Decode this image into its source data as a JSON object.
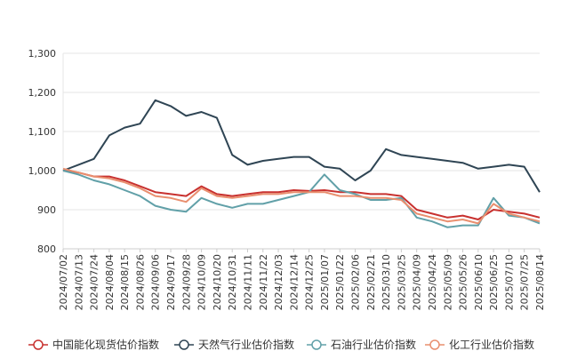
{
  "chart_data": {
    "type": "line",
    "title": "",
    "xlabel": "",
    "ylabel": "",
    "ylim": [
      800,
      1300
    ],
    "yticks": [
      "800",
      "900",
      "1,000",
      "1,100",
      "1,200",
      "1,300"
    ],
    "grid": true,
    "legend_position": "bottom",
    "x": [
      "2024/07/02",
      "2024/07/13",
      "2024/07/24",
      "2024/08/04",
      "2024/08/15",
      "2024/08/26",
      "2024/09/06",
      "2024/09/17",
      "2024/09/28",
      "2024/10/09",
      "2024/10/20",
      "2024/10/31",
      "2024/11/11",
      "2024/11/22",
      "2024/12/03",
      "2024/12/14",
      "2024/12/25",
      "2025/01/07",
      "2025/01/22",
      "2025/02/06",
      "2025/02/21",
      "2025/03/10",
      "2025/03/25",
      "2025/04/09",
      "2025/04/24",
      "2025/05/09",
      "2025/05/26",
      "2025/06/10",
      "2025/06/25",
      "2025/07/10",
      "2025/07/25",
      "2025/08/14"
    ],
    "series": [
      {
        "name": "中国能化现货估价指数",
        "color": "#c8312f",
        "values": [
          1000,
          995,
          985,
          985,
          975,
          960,
          945,
          940,
          935,
          960,
          940,
          935,
          940,
          945,
          945,
          950,
          948,
          950,
          945,
          945,
          940,
          940,
          935,
          900,
          890,
          880,
          885,
          875,
          900,
          895,
          890,
          880
        ]
      },
      {
        "name": "天然气行业估价指数",
        "color": "#2f4554",
        "values": [
          1000,
          1015,
          1030,
          1090,
          1110,
          1120,
          1180,
          1165,
          1140,
          1150,
          1135,
          1040,
          1015,
          1025,
          1030,
          1035,
          1035,
          1010,
          1005,
          975,
          1000,
          1055,
          1040,
          1035,
          1030,
          1025,
          1020,
          1005,
          1010,
          1015,
          1010,
          945
        ]
      },
      {
        "name": "石油行业估价指数",
        "color": "#61a0a8",
        "values": [
          1000,
          990,
          975,
          965,
          950,
          935,
          910,
          900,
          895,
          930,
          915,
          905,
          915,
          915,
          925,
          935,
          945,
          990,
          950,
          940,
          925,
          925,
          930,
          880,
          870,
          855,
          860,
          860,
          930,
          885,
          880,
          865
        ]
      },
      {
        "name": "化工行业估价指数",
        "color": "#e98f6f",
        "values": [
          1005,
          995,
          985,
          980,
          970,
          955,
          935,
          930,
          920,
          955,
          935,
          930,
          935,
          940,
          940,
          945,
          945,
          945,
          935,
          935,
          930,
          930,
          925,
          890,
          880,
          870,
          875,
          865,
          915,
          890,
          880,
          870
        ]
      }
    ]
  }
}
